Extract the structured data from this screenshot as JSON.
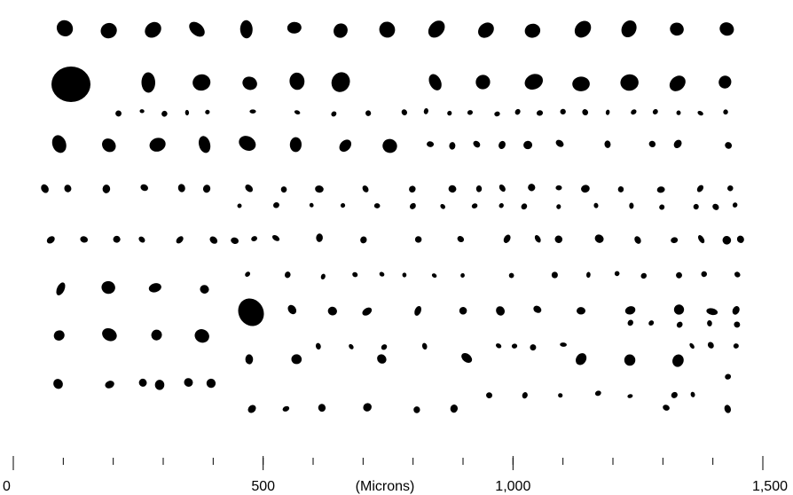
{
  "scale_bar": {
    "label": "(Microns)",
    "range": [
      0,
      1500
    ],
    "ticks": [
      0,
      100,
      200,
      300,
      400,
      500,
      600,
      700,
      800,
      900,
      1000,
      1100,
      1200,
      1300,
      1400,
      1500
    ],
    "tick_labels": [
      {
        "value": 0,
        "label": "0"
      },
      {
        "value": 500,
        "label": "500"
      },
      {
        "value": 1000,
        "label": "1,000"
      },
      {
        "value": 1500,
        "label": "1,500"
      }
    ]
  }
}
